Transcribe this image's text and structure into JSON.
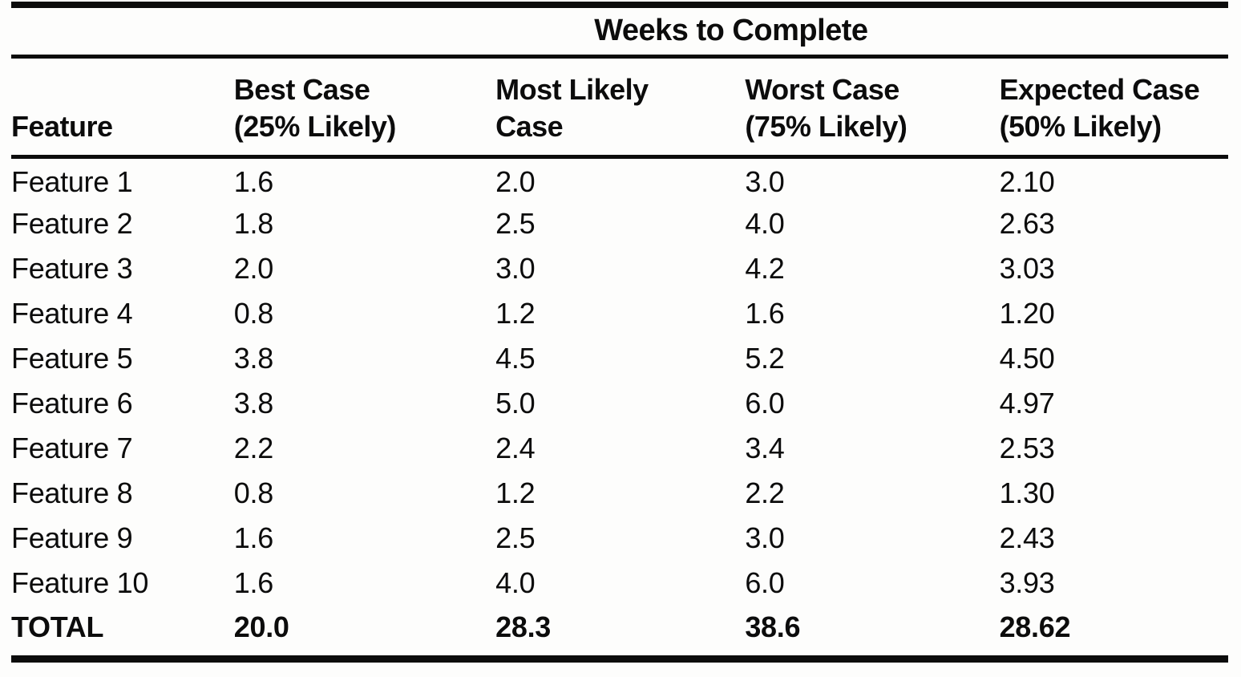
{
  "document": {
    "kind": "scanned-book-table",
    "colors": {
      "text": "#0c0c0c",
      "rule": "#0c0c0c",
      "background": "#fdfdfc"
    }
  },
  "table": {
    "spanner": "Weeks to Complete",
    "columns": [
      {
        "label": "Feature"
      },
      {
        "label": "Best Case\n(25% Likely)"
      },
      {
        "label": "Most Likely\nCase"
      },
      {
        "label": "Worst Case\n(75% Likely)"
      },
      {
        "label": "Expected Case\n(50% Likely)"
      }
    ],
    "rows": [
      {
        "feature": "Feature 1",
        "best": "1.6",
        "likely": "2.0",
        "worst": "3.0",
        "expected": "2.10"
      },
      {
        "feature": "Feature 2",
        "best": "1.8",
        "likely": "2.5",
        "worst": "4.0",
        "expected": "2.63"
      },
      {
        "feature": "Feature 3",
        "best": "2.0",
        "likely": "3.0",
        "worst": "4.2",
        "expected": "3.03"
      },
      {
        "feature": "Feature 4",
        "best": "0.8",
        "likely": "1.2",
        "worst": "1.6",
        "expected": "1.20"
      },
      {
        "feature": "Feature 5",
        "best": "3.8",
        "likely": "4.5",
        "worst": "5.2",
        "expected": "4.50"
      },
      {
        "feature": "Feature 6",
        "best": "3.8",
        "likely": "5.0",
        "worst": "6.0",
        "expected": "4.97"
      },
      {
        "feature": "Feature 7",
        "best": "2.2",
        "likely": "2.4",
        "worst": "3.4",
        "expected": "2.53"
      },
      {
        "feature": "Feature 8",
        "best": "0.8",
        "likely": "1.2",
        "worst": "2.2",
        "expected": "1.30"
      },
      {
        "feature": "Feature 9",
        "best": "1.6",
        "likely": "2.5",
        "worst": "3.0",
        "expected": "2.43"
      },
      {
        "feature": "Feature 10",
        "best": "1.6",
        "likely": "4.0",
        "worst": "6.0",
        "expected": "3.93"
      },
      {
        "feature": "TOTAL",
        "best": "20.0",
        "likely": "28.3",
        "worst": "38.6",
        "expected": "28.62"
      }
    ]
  }
}
